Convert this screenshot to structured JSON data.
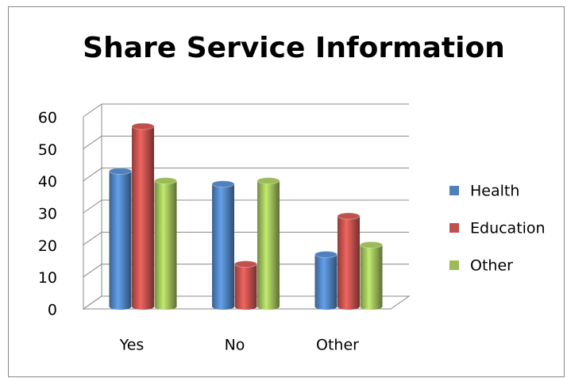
{
  "chart_data": {
    "type": "bar",
    "title": "Share Service Information",
    "categories": [
      "Yes",
      "No",
      "Other"
    ],
    "series": [
      {
        "name": "Health",
        "color": "#4f81bd",
        "values": [
          43,
          39,
          17
        ]
      },
      {
        "name": "Education",
        "color": "#c0504d",
        "values": [
          57,
          14,
          29
        ]
      },
      {
        "name": "Other",
        "color": "#9bbb59",
        "values": [
          40,
          40,
          20
        ]
      }
    ],
    "ylim": [
      0,
      60
    ],
    "yticks": [
      0,
      10,
      20,
      30,
      40,
      50,
      60
    ],
    "grid": true,
    "legend": "right"
  }
}
